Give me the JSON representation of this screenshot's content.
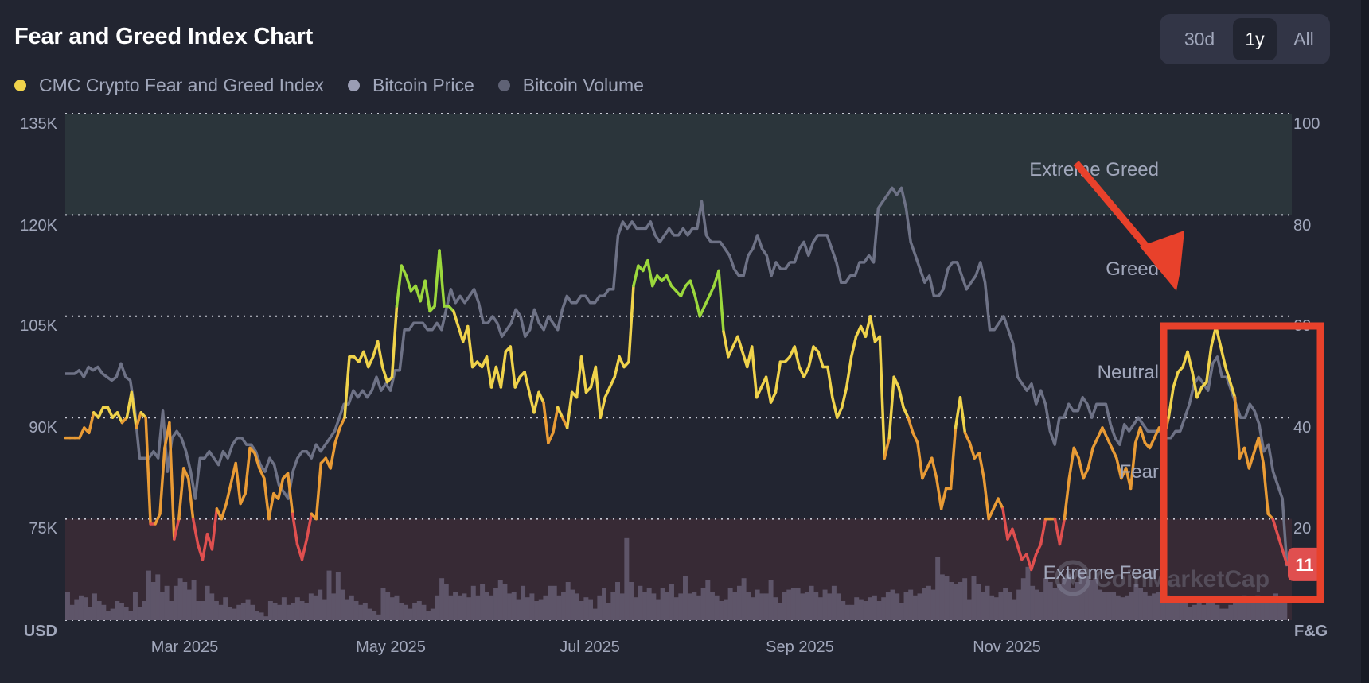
{
  "header": {
    "title": "Fear and Greed Index Chart",
    "range_options": [
      {
        "label": "30d",
        "active": false
      },
      {
        "label": "1y",
        "active": true
      },
      {
        "label": "All",
        "active": false
      }
    ]
  },
  "legend": [
    {
      "label": "CMC Crypto Fear and Greed Index",
      "color": "#f0d34b"
    },
    {
      "label": "Bitcoin Price",
      "color": "#9a9db4"
    },
    {
      "label": "Bitcoin Volume",
      "color": "#5f6275"
    }
  ],
  "watermark": "CoinMarketCap",
  "chart_data": {
    "type": "line",
    "title": "Fear and Greed Index Chart",
    "left_axis": {
      "label": "USD",
      "ticks": [
        "135K",
        "120K",
        "105K",
        "90K",
        "75K"
      ],
      "range": [
        60,
        135
      ],
      "unit": "K USD"
    },
    "right_axis": {
      "label": "F&G",
      "ticks": [
        "100",
        "80",
        "60",
        "40",
        "20"
      ],
      "range": [
        0,
        100
      ]
    },
    "x_ticks": [
      "Mar 2025",
      "May 2025",
      "Jul 2025",
      "Sep 2025",
      "Nov 2025"
    ],
    "x_range_months": [
      0.7,
      12.75
    ],
    "x_tick_positions_months": [
      2,
      4,
      6,
      8,
      10
    ],
    "zones": [
      {
        "label": "Extreme Greed",
        "from": 80,
        "to": 100,
        "color": "#2b353b"
      },
      {
        "label": "Greed",
        "from": 60,
        "to": 80
      },
      {
        "label": "Neutral",
        "from": 40,
        "to": 60
      },
      {
        "label": "Fear",
        "from": 20,
        "to": 40
      },
      {
        "label": "Extreme Fear",
        "from": 0,
        "to": 20,
        "color": "#372a35"
      }
    ],
    "current_value_label": "11",
    "grid": true,
    "series": [
      {
        "name": "CMC Crypto Fear and Greed Index",
        "axis": "right",
        "values": [
          36,
          36,
          36,
          36,
          38,
          37,
          41,
          40,
          42,
          42,
          40,
          41,
          39,
          40,
          45,
          38,
          41,
          40,
          19,
          19,
          21,
          34,
          39,
          16,
          20,
          30,
          28,
          20,
          15,
          12,
          17,
          14,
          22,
          20,
          23,
          27,
          31,
          23,
          25,
          34,
          33,
          30,
          28,
          20,
          25,
          24,
          28,
          29,
          21,
          15,
          12,
          16,
          21,
          20,
          31,
          32,
          30,
          35,
          38,
          40,
          52,
          52,
          51,
          53,
          50,
          52,
          55,
          50,
          47,
          48,
          62,
          70,
          68,
          65,
          66,
          63,
          67,
          61,
          62,
          73,
          62,
          62,
          61,
          58,
          55,
          58,
          50,
          51,
          50,
          52,
          46,
          50,
          46,
          53,
          54,
          46,
          48,
          49,
          45,
          41,
          45,
          43,
          35,
          37,
          42,
          40,
          38,
          45,
          44,
          52,
          45,
          46,
          50,
          40,
          44,
          46,
          48,
          52,
          50,
          51,
          66,
          70,
          69,
          71,
          66,
          68,
          67,
          68,
          66,
          65,
          64,
          66,
          67,
          64,
          60,
          62,
          64,
          66,
          69,
          57,
          52,
          54,
          56,
          53,
          50,
          54,
          44,
          46,
          48,
          43,
          45,
          51,
          51,
          52,
          54,
          50,
          48,
          50,
          54,
          53,
          50,
          50,
          44,
          40,
          42,
          46,
          52,
          56,
          58,
          56,
          60,
          55,
          56,
          32,
          36,
          48,
          46,
          42,
          40,
          37,
          35,
          28,
          30,
          32,
          28,
          22,
          26,
          26,
          38,
          44,
          37,
          35,
          32,
          33,
          28,
          20,
          22,
          24,
          22,
          16,
          18,
          15,
          12,
          13,
          10,
          13,
          15,
          20,
          20,
          20,
          15,
          20,
          28,
          34,
          32,
          28,
          30,
          34,
          36,
          38,
          36,
          34,
          32,
          28,
          30,
          26,
          35,
          38,
          35,
          34,
          36,
          38,
          36,
          40,
          46,
          49,
          50,
          53,
          49,
          44,
          46,
          47,
          54,
          58,
          54,
          50,
          47,
          44,
          32,
          34,
          30,
          33,
          36,
          31,
          21,
          20,
          17,
          14,
          11
        ],
        "colors": {
          "extreme_fear": "#e04f4f",
          "fear": "#e99b35",
          "neutral": "#f0d34b",
          "greed": "#9bd83c"
        }
      },
      {
        "name": "Bitcoin Price",
        "axis": "left",
        "unit": "K USD",
        "values": [
          96.5,
          96.5,
          96.5,
          97,
          96,
          97.5,
          97,
          97.5,
          96.5,
          96,
          95.5,
          96,
          98,
          96,
          95.5,
          91,
          84,
          84,
          84,
          85,
          84,
          91,
          82,
          87,
          88,
          87,
          85,
          82,
          78,
          84,
          84,
          85,
          84,
          83,
          85,
          84,
          86,
          87,
          87,
          86,
          86,
          85,
          83,
          82,
          84,
          83,
          80,
          79,
          78,
          82,
          84,
          85,
          85,
          84,
          86,
          85,
          86,
          87,
          88,
          90,
          92,
          92,
          94,
          93,
          94,
          93,
          94,
          96,
          94,
          95,
          94,
          97,
          97,
          103,
          103,
          104,
          104,
          104,
          103,
          103,
          104,
          103,
          106,
          109,
          107,
          108,
          107,
          108,
          109,
          107,
          104,
          104,
          105,
          104,
          102,
          103,
          104,
          106,
          105,
          102,
          103,
          106,
          104,
          103,
          105,
          104,
          103,
          106,
          108,
          107,
          107,
          108,
          108,
          107,
          107,
          108,
          108,
          109,
          109,
          117,
          119,
          118,
          119,
          118,
          118,
          118,
          119,
          117,
          116,
          117,
          118,
          117,
          117,
          118,
          117,
          118,
          118,
          122,
          117,
          116,
          116,
          116,
          115,
          114,
          112,
          111,
          111,
          114,
          115,
          117,
          115,
          114,
          111,
          113,
          112,
          112,
          113,
          113,
          115,
          116,
          114,
          116,
          117,
          117,
          117,
          115,
          113,
          110,
          110,
          111,
          111,
          113,
          113,
          114,
          113,
          121,
          122,
          123,
          124,
          123,
          124,
          121,
          116,
          114,
          112,
          110,
          111,
          108,
          108,
          109,
          112,
          113,
          113,
          111,
          109,
          110,
          111,
          113,
          110,
          103,
          103,
          104,
          105,
          103,
          101,
          96,
          95,
          94,
          95,
          92,
          94,
          92,
          88,
          86,
          90,
          90,
          92,
          91,
          91,
          93,
          92,
          90,
          92,
          92,
          92,
          89,
          87,
          86,
          89,
          88,
          89,
          90,
          89,
          88,
          88,
          88,
          88,
          87,
          87,
          88,
          88,
          90,
          92,
          95,
          96,
          95,
          94,
          98,
          99,
          96,
          96,
          94,
          92,
          90,
          90,
          92,
          91,
          89,
          85,
          86,
          82,
          80,
          78,
          68
        ],
        "color": "#6e7286"
      },
      {
        "name": "Bitcoin Volume",
        "axis": "hidden",
        "relative_values": [
          0.3,
          0.16,
          0.22,
          0.26,
          0.24,
          0.14,
          0.28,
          0.2,
          0.16,
          0.1,
          0.12,
          0.2,
          0.18,
          0.14,
          0.1,
          0.3,
          0.14,
          0.2,
          0.52,
          0.4,
          0.48,
          0.3,
          0.36,
          0.2,
          0.36,
          0.44,
          0.4,
          0.32,
          0.42,
          0.2,
          0.2,
          0.36,
          0.28,
          0.2,
          0.16,
          0.24,
          0.14,
          0.12,
          0.16,
          0.18,
          0.22,
          0.16,
          0.1,
          0.08,
          0.04,
          0.2,
          0.18,
          0.16,
          0.24,
          0.16,
          0.18,
          0.24,
          0.2,
          0.18,
          0.28,
          0.26,
          0.32,
          0.22,
          0.52,
          0.28,
          0.5,
          0.32,
          0.22,
          0.26,
          0.2,
          0.16,
          0.18,
          0.12,
          0.1,
          0.06,
          0.34,
          0.3,
          0.24,
          0.26,
          0.18,
          0.16,
          0.12,
          0.18,
          0.2,
          0.16,
          0.1,
          0.12,
          0.26,
          0.44,
          0.38,
          0.26,
          0.3,
          0.26,
          0.28,
          0.24,
          0.36,
          0.26,
          0.38,
          0.3,
          0.26,
          0.34,
          0.42,
          0.38,
          0.28,
          0.3,
          0.22,
          0.36,
          0.24,
          0.28,
          0.2,
          0.22,
          0.26,
          0.36,
          0.36,
          0.26,
          0.3,
          0.4,
          0.32,
          0.28,
          0.2,
          0.24,
          0.22,
          0.12,
          0.26,
          0.34,
          0.18,
          0.3,
          0.4,
          0.28,
          0.86,
          0.4,
          0.24,
          0.36,
          0.3,
          0.34,
          0.28,
          0.22,
          0.34,
          0.3,
          0.38,
          0.24,
          0.28,
          0.46,
          0.28,
          0.3,
          0.26,
          0.34,
          0.42,
          0.3,
          0.26,
          0.2,
          0.22,
          0.34,
          0.3,
          0.36,
          0.44,
          0.3,
          0.24,
          0.32,
          0.28,
          0.28,
          0.42,
          0.24,
          0.18,
          0.3,
          0.32,
          0.34,
          0.34,
          0.28,
          0.3,
          0.36,
          0.3,
          0.24,
          0.32,
          0.28,
          0.36,
          0.28,
          0.2,
          0.16,
          0.16,
          0.24,
          0.22,
          0.2,
          0.24,
          0.26,
          0.2,
          0.24,
          0.3,
          0.32,
          0.28,
          0.18,
          0.3,
          0.32,
          0.26,
          0.28,
          0.34,
          0.36,
          0.32,
          0.66,
          0.48,
          0.46,
          0.4,
          0.38,
          0.4,
          0.44,
          0.22,
          0.46,
          0.38,
          0.3,
          0.36,
          0.26,
          0.24,
          0.3,
          0.34,
          0.3,
          0.22,
          0.32,
          0.44,
          0.56,
          0.36,
          0.32,
          0.3,
          0.44,
          0.4,
          0.34,
          0.38,
          0.44,
          0.48,
          0.34,
          0.4,
          0.52,
          0.46,
          0.42,
          0.44,
          0.32,
          0.3,
          0.3,
          0.3,
          0.26,
          0.24,
          0.26,
          0.3,
          0.38,
          0.34,
          0.3,
          0.26,
          0.28,
          0.3,
          0.26,
          0.26,
          0.22,
          0.22,
          0.24,
          0.18,
          0.14,
          0.16,
          0.18,
          0.16,
          0.2,
          0.22,
          0.16,
          0.12,
          0.12,
          0.16,
          0.22,
          0.24,
          0.26,
          0.24,
          0.2,
          0.26,
          0.2,
          0.22,
          0.24,
          0.28,
          0.24,
          0.18
        ],
        "color": "#5e5569"
      }
    ]
  }
}
